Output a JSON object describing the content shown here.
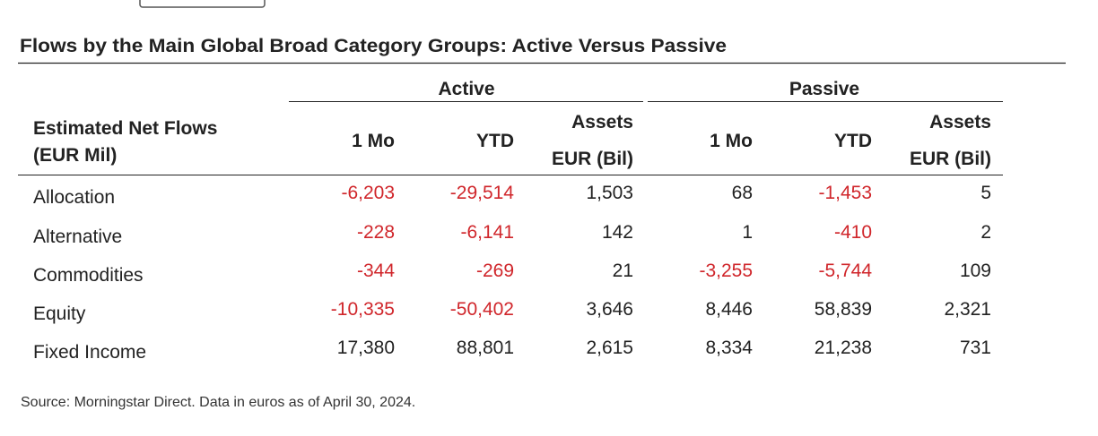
{
  "title": "Flows by the Main Global Broad Category Groups: Active Versus Passive",
  "table": {
    "groups": [
      "Active",
      "Passive"
    ],
    "row_header": [
      "Estimated Net Flows",
      "(EUR Mil)"
    ],
    "columns": [
      [
        "1 Mo"
      ],
      [
        "YTD"
      ],
      [
        "Assets",
        "EUR (Bil)"
      ],
      [
        "1 Mo"
      ],
      [
        "YTD"
      ],
      [
        "Assets",
        "EUR (Bil)"
      ]
    ],
    "rows": [
      [
        "Allocation",
        "-6,203",
        "-29,514",
        "1,503",
        "68",
        "-1,453",
        "5"
      ],
      [
        "Alternative",
        "-228",
        "-6,141",
        "142",
        "1",
        "-410",
        "2"
      ],
      [
        "Commodities",
        "-344",
        "-269",
        "21",
        "-3,255",
        "-5,744",
        "109"
      ],
      [
        "Equity",
        "-10,335",
        "-50,402",
        "3,646",
        "8,446",
        "58,839",
        "2,321"
      ],
      [
        "Fixed Income",
        "17,380",
        "88,801",
        "2,615",
        "8,334",
        "21,238",
        "731"
      ]
    ]
  },
  "source": "Source: Morningstar Direct. Data in euros as of April 30, 2024."
}
